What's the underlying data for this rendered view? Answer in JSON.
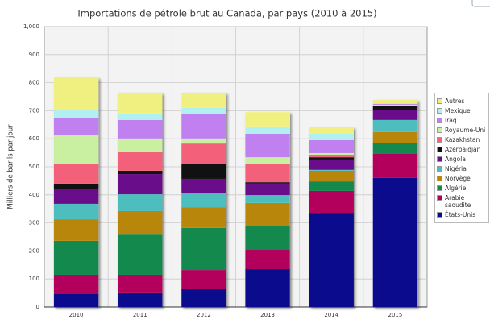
{
  "chart_data": {
    "type": "stacked-bar",
    "title": "Importations de pétrole brut au Canada, par pays (2010 à 2015)",
    "ylabel": "Milliers de barils par jour",
    "categories": [
      "2010",
      "2011",
      "2012",
      "2013",
      "2014",
      "2015"
    ],
    "ylim": [
      0,
      1000
    ],
    "yticks": [
      0,
      100,
      200,
      300,
      400,
      500,
      600,
      700,
      800,
      900,
      {
        "value": 1000,
        "label": "1,000"
      }
    ],
    "grid": true,
    "legend": "right",
    "series": [
      {
        "name": "États-Unis",
        "color": "#0b0b8e",
        "values": [
          46,
          52,
          66,
          135,
          336,
          460
        ]
      },
      {
        "name": "Arabie saoudite",
        "color": "#b3005c",
        "values": [
          69,
          63,
          66,
          69,
          78,
          86
        ]
      },
      {
        "name": "Algérie",
        "color": "#14894d",
        "values": [
          121,
          146,
          150,
          86,
          34,
          40
        ]
      },
      {
        "name": "Norvège",
        "color": "#b8860b",
        "values": [
          77,
          81,
          74,
          81,
          38,
          38
        ]
      },
      {
        "name": "Nigéria",
        "color": "#4dbdbd",
        "values": [
          55,
          60,
          49,
          28,
          3,
          43
        ]
      },
      {
        "name": "Angola",
        "color": "#6a0d8a",
        "values": [
          54,
          72,
          52,
          41,
          37,
          37
        ]
      },
      {
        "name": "Azerbaïdjan",
        "color": "#111111",
        "values": [
          18,
          12,
          54,
          5,
          8,
          12
        ]
      },
      {
        "name": "Kazakhstan",
        "color": "#f2607a",
        "values": [
          71,
          69,
          72,
          64,
          9,
          2
        ]
      },
      {
        "name": "Royaume-Uni",
        "color": "#c8f0a0",
        "values": [
          101,
          46,
          18,
          25,
          6,
          3
        ]
      },
      {
        "name": "Iraq",
        "color": "#c080f0",
        "values": [
          63,
          66,
          86,
          84,
          46,
          3
        ]
      },
      {
        "name": "Mexique",
        "color": "#b0f0f0",
        "values": [
          26,
          23,
          23,
          26,
          23,
          3
        ]
      },
      {
        "name": "Autres",
        "color": "#f0f080",
        "values": [
          118,
          74,
          54,
          51,
          23,
          12
        ]
      }
    ]
  }
}
